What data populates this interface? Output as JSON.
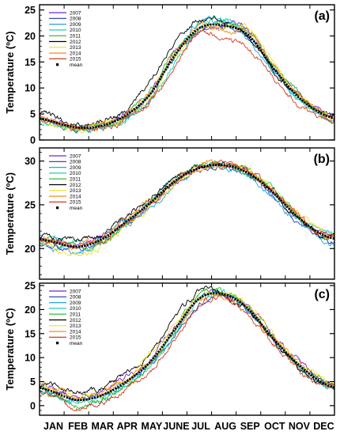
{
  "chart_data": [
    {
      "type": "line",
      "panel_label": "(a)",
      "ylabel": "Temperature (ºC)",
      "ylim": [
        0,
        26
      ],
      "yticks": [
        0,
        5,
        10,
        15,
        20,
        25
      ],
      "x_unit": "month",
      "xlim": [
        0.5,
        12.5
      ],
      "series": [
        {
          "name": "2007",
          "color": "#7a1fd6",
          "values": [
            3.8,
            2.6,
            2.9,
            5.0,
            8.8,
            16.8,
            20.5,
            22.1,
            21.0,
            14.2,
            8.8,
            5.4
          ]
        },
        {
          "name": "2008",
          "color": "#2237b0",
          "values": [
            3.5,
            2.3,
            2.7,
            4.6,
            8.0,
            15.6,
            21.0,
            21.8,
            20.3,
            13.8,
            8.4,
            5.0
          ]
        },
        {
          "name": "2009",
          "color": "#21a6e0",
          "values": [
            3.2,
            2.1,
            2.5,
            4.3,
            8.4,
            16.2,
            22.5,
            22.4,
            19.6,
            13.2,
            7.9,
            4.6
          ]
        },
        {
          "name": "2010",
          "color": "#18d1b0",
          "values": [
            3.0,
            2.0,
            2.3,
            4.0,
            7.9,
            15.0,
            22.0,
            23.2,
            20.0,
            13.6,
            8.2,
            4.8
          ]
        },
        {
          "name": "2011",
          "color": "#22b51f",
          "values": [
            3.6,
            2.4,
            2.8,
            4.8,
            9.2,
            17.2,
            21.5,
            22.0,
            20.6,
            14.4,
            9.0,
            5.2
          ]
        },
        {
          "name": "2012",
          "color": "#000000",
          "values": [
            4.6,
            3.2,
            3.6,
            5.8,
            11.5,
            19.0,
            23.0,
            22.6,
            19.8,
            13.5,
            8.5,
            5.3
          ]
        },
        {
          "name": "2013",
          "color": "#f2e21a",
          "values": [
            3.4,
            2.2,
            2.6,
            4.4,
            8.2,
            15.8,
            21.2,
            21.5,
            21.4,
            14.8,
            9.2,
            5.5
          ]
        },
        {
          "name": "2014",
          "color": "#ff8a1a",
          "values": [
            3.9,
            2.7,
            3.0,
            5.2,
            9.0,
            16.5,
            21.8,
            21.2,
            20.8,
            14.6,
            8.9,
            5.1
          ]
        },
        {
          "name": "2015",
          "color": "#d83a1a",
          "values": [
            3.1,
            2.0,
            2.2,
            3.8,
            7.2,
            14.0,
            20.2,
            19.8,
            17.5,
            12.0,
            7.0,
            4.2
          ]
        }
      ],
      "mean": {
        "name": "mean",
        "color": "#000000",
        "values": [
          3.6,
          2.4,
          2.7,
          4.7,
          8.8,
          16.3,
          21.5,
          22.0,
          20.1,
          13.9,
          8.4,
          5.0
        ]
      }
    },
    {
      "type": "line",
      "panel_label": "(b)",
      "ylabel": "Temperature (ºC)",
      "ylim": [
        16.5,
        31.5
      ],
      "yticks": [
        20,
        25,
        30
      ],
      "x_unit": "month",
      "xlim": [
        0.5,
        12.5
      ],
      "series": [
        {
          "name": "2007",
          "color": "#7a1fd6",
          "values": [
            21.0,
            20.6,
            21.4,
            23.2,
            25.4,
            27.8,
            29.2,
            29.4,
            28.6,
            26.6,
            23.8,
            21.8
          ]
        },
        {
          "name": "2008",
          "color": "#2237b0",
          "values": [
            20.5,
            20.0,
            21.0,
            22.8,
            25.0,
            27.5,
            29.0,
            29.3,
            28.4,
            26.0,
            23.2,
            21.2
          ]
        },
        {
          "name": "2009",
          "color": "#21a6e0",
          "values": [
            20.2,
            19.6,
            20.4,
            22.5,
            24.6,
            27.2,
            28.8,
            29.2,
            28.2,
            25.8,
            23.0,
            21.0
          ]
        },
        {
          "name": "2010",
          "color": "#18d1b0",
          "values": [
            21.2,
            20.8,
            21.2,
            23.4,
            25.6,
            28.0,
            29.6,
            29.8,
            28.8,
            26.8,
            24.0,
            22.0
          ]
        },
        {
          "name": "2011",
          "color": "#22b51f",
          "values": [
            20.6,
            20.0,
            20.8,
            22.9,
            25.2,
            27.6,
            29.4,
            29.5,
            28.5,
            26.4,
            23.6,
            21.6
          ]
        },
        {
          "name": "2012",
          "color": "#000000",
          "values": [
            21.4,
            21.0,
            21.5,
            23.6,
            25.8,
            28.2,
            29.4,
            29.6,
            28.6,
            26.5,
            23.6,
            21.5
          ]
        },
        {
          "name": "2013",
          "color": "#f2e21a",
          "values": [
            20.0,
            19.4,
            20.2,
            22.4,
            24.8,
            27.4,
            29.0,
            29.8,
            29.0,
            26.9,
            24.2,
            21.9
          ]
        },
        {
          "name": "2014",
          "color": "#ff8a1a",
          "values": [
            21.0,
            20.5,
            21.2,
            23.2,
            25.4,
            27.9,
            29.5,
            29.6,
            28.8,
            26.6,
            23.8,
            21.7
          ]
        },
        {
          "name": "2015",
          "color": "#d83a1a",
          "values": [
            20.8,
            20.2,
            20.9,
            23.0,
            25.0,
            27.6,
            29.2,
            29.7,
            28.9,
            26.7,
            23.9,
            21.6
          ]
        }
      ],
      "mean": {
        "name": "mean",
        "color": "#000000",
        "values": [
          20.8,
          20.2,
          21.0,
          23.0,
          25.2,
          27.7,
          29.2,
          29.5,
          28.6,
          26.4,
          23.6,
          21.6
        ]
      }
    },
    {
      "type": "line",
      "panel_label": "(c)",
      "ylabel": "Temperature (ºC)",
      "ylim": [
        -2,
        25.5
      ],
      "yticks": [
        0,
        5,
        10,
        15,
        20,
        25
      ],
      "x_unit": "month",
      "xlim": [
        0.5,
        12.5
      ],
      "series": [
        {
          "name": "2007",
          "color": "#7a1fd6",
          "values": [
            3.4,
            1.8,
            2.8,
            5.6,
            9.6,
            16.4,
            22.2,
            23.4,
            20.6,
            14.6,
            9.4,
            5.2
          ]
        },
        {
          "name": "2008",
          "color": "#2237b0",
          "values": [
            3.0,
            1.2,
            2.2,
            4.8,
            8.8,
            15.2,
            21.4,
            23.0,
            20.0,
            14.0,
            8.8,
            4.8
          ]
        },
        {
          "name": "2009",
          "color": "#21a6e0",
          "values": [
            2.6,
            0.8,
            1.8,
            4.6,
            9.0,
            15.6,
            22.6,
            23.2,
            19.8,
            13.6,
            8.4,
            4.4
          ]
        },
        {
          "name": "2010",
          "color": "#18d1b0",
          "values": [
            2.2,
            0.4,
            1.4,
            4.0,
            8.2,
            14.6,
            22.0,
            23.8,
            20.2,
            13.8,
            8.6,
            4.6
          ]
        },
        {
          "name": "2011",
          "color": "#22b51f",
          "values": [
            2.0,
            0.2,
            1.2,
            4.2,
            8.6,
            15.8,
            23.0,
            23.6,
            20.4,
            14.2,
            9.0,
            5.0
          ]
        },
        {
          "name": "2012",
          "color": "#000000",
          "values": [
            4.4,
            3.0,
            3.6,
            6.4,
            11.0,
            18.0,
            23.8,
            23.0,
            19.6,
            13.4,
            8.2,
            4.6
          ]
        },
        {
          "name": "2013",
          "color": "#f2e21a",
          "values": [
            3.2,
            1.4,
            2.4,
            5.2,
            10.4,
            16.8,
            22.4,
            23.2,
            20.8,
            14.8,
            9.2,
            5.4
          ]
        },
        {
          "name": "2014",
          "color": "#ff8a1a",
          "values": [
            3.6,
            1.6,
            2.6,
            5.4,
            9.2,
            16.0,
            22.0,
            22.6,
            20.4,
            14.4,
            9.0,
            5.0
          ]
        },
        {
          "name": "2015",
          "color": "#d83a1a",
          "values": [
            2.4,
            -0.2,
            0.8,
            3.4,
            7.0,
            13.6,
            21.0,
            22.4,
            19.0,
            13.0,
            7.6,
            4.0
          ]
        }
      ],
      "mean": {
        "name": "mean",
        "color": "#000000",
        "values": [
          3.0,
          1.2,
          2.1,
          4.9,
          9.1,
          15.8,
          22.3,
          23.2,
          20.1,
          14.0,
          8.7,
          4.8
        ]
      }
    }
  ],
  "x_axis": {
    "months": [
      "JAN",
      "FEB",
      "MAR",
      "APR",
      "MAY",
      "JUNE",
      "JUL",
      "AUG",
      "SEP",
      "OCT",
      "NOV",
      "DEC"
    ]
  }
}
